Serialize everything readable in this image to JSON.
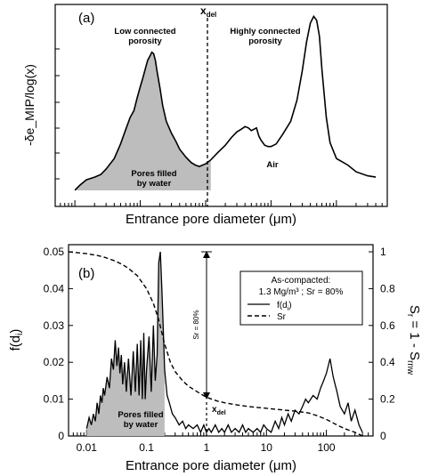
{
  "panel_a": {
    "label": "(a)",
    "ylabel": "-δe_MIP/log(x)",
    "xlabel": "Entrance pore diameter (μm)",
    "xdel_label": "x",
    "xdel_sub": "del",
    "ann_low_line1": "Low connected",
    "ann_low_line2": "porosity",
    "ann_high_line1": "Highly connected",
    "ann_high_line2": "porosity",
    "ann_pores_line1": "Pores filled",
    "ann_pores_line2": "by water",
    "ann_air": "Air"
  },
  "panel_b": {
    "label": "(b)",
    "ylabel_left": "f(d",
    "ylabel_left_sub": "i",
    "ylabel_left_end": ")",
    "ylabel_right": "S",
    "ylabel_right_sub1": "r",
    "ylabel_right_mid": " = 1 - S",
    "ylabel_right_sub2": "rnw",
    "xlabel": "Entrance pore diameter (μm)",
    "sr_annotation": "Sr = 80%",
    "xdel_label": "x",
    "xdel_sub": "del",
    "ann_pores_line1": "Pores filled",
    "ann_pores_line2": "by water",
    "legend_title1": "As-compacted:",
    "legend_title2": "1.3 Mg/m³ ; Sr = 80%",
    "legend_fd": "f(d",
    "legend_fd_sub": "i",
    "legend_fd_end": ")",
    "legend_sr": "Sr"
  },
  "chart_data": [
    {
      "type": "area",
      "panel": "(a)",
      "xlabel": "Entrance pore diameter (μm)",
      "ylabel": "-δe_MIP/log(x)",
      "xscale": "log",
      "xlim": [
        0.005,
        600
      ],
      "xdel": 1.2,
      "series": [
        {
          "x": [
            0.01,
            0.012,
            0.015,
            0.02,
            0.025,
            0.03,
            0.04,
            0.05,
            0.06,
            0.07,
            0.08,
            0.09,
            0.1,
            0.11,
            0.12,
            0.13,
            0.14,
            0.15,
            0.16,
            0.17,
            0.18,
            0.2,
            0.22,
            0.25,
            0.3,
            0.35,
            0.4,
            0.5,
            0.6,
            0.7,
            0.8,
            1.0,
            1.2,
            1.5,
            2,
            2.5,
            3,
            3.5,
            4,
            4.5,
            5,
            6,
            6.5,
            7,
            8,
            9,
            10,
            12,
            15,
            20,
            25,
            30,
            35,
            40,
            45,
            50,
            55,
            60,
            70,
            80,
            100,
            150,
            200,
            300,
            400
          ],
          "y": [
            0.2,
            4,
            8,
            10,
            12,
            16,
            24,
            35,
            46,
            55,
            60,
            70,
            78,
            85,
            92,
            98,
            101,
            104,
            103,
            98,
            90,
            77,
            64,
            52,
            43,
            37,
            31,
            25,
            21,
            19,
            18,
            20,
            23,
            28,
            34,
            40,
            44,
            46,
            48,
            47,
            45,
            47,
            41,
            38,
            34,
            33,
            33,
            35,
            42,
            52,
            68,
            90,
            112,
            126,
            131,
            128,
            116,
            91,
            55,
            36,
            24,
            19,
            14,
            11,
            10
          ]
        }
      ],
      "shaded_region": {
        "x_max": 1.2,
        "label": "Pores filled by water"
      },
      "annotations": [
        "Low connected porosity",
        "Highly connected porosity",
        "Pores filled by water",
        "Air"
      ]
    },
    {
      "type": "line",
      "panel": "(b)",
      "xlabel": "Entrance pore diameter (μm)",
      "ylabel_left": "f(d_i)",
      "ylabel_right": "S_r = 1 - S_rnw",
      "xscale": "log",
      "xlim": [
        0.005,
        600
      ],
      "ylim_left": [
        0,
        0.05
      ],
      "ylim_right": [
        0,
        1
      ],
      "x_ticks": [
        "0.01",
        "0.1",
        "1",
        "10",
        "100"
      ],
      "y_ticks_left": [
        "0",
        "0.01",
        "0.02",
        "0.03",
        "0.04",
        "0.05"
      ],
      "y_ticks_right": [
        "0",
        "0.2",
        "0.4",
        "0.6",
        "0.8",
        "1"
      ],
      "legend": {
        "position": "top-right",
        "title": [
          "As-compacted:",
          "1.3 Mg/m³ ; Sr = 80%"
        ],
        "entries": [
          "f(d_i)",
          "Sr"
        ]
      },
      "series": [
        {
          "name": "f(d_i)",
          "axis": "left",
          "x": [
            0.01,
            0.011,
            0.012,
            0.013,
            0.014,
            0.015,
            0.016,
            0.017,
            0.018,
            0.019,
            0.02,
            0.022,
            0.024,
            0.026,
            0.028,
            0.03,
            0.032,
            0.034,
            0.036,
            0.038,
            0.04,
            0.043,
            0.046,
            0.05,
            0.055,
            0.06,
            0.065,
            0.07,
            0.075,
            0.08,
            0.085,
            0.09,
            0.095,
            0.1,
            0.11,
            0.12,
            0.13,
            0.14,
            0.15,
            0.16,
            0.17,
            0.18,
            0.19,
            0.2,
            0.22,
            0.24,
            0.27,
            0.3,
            0.35,
            0.4,
            0.45,
            0.5,
            0.6,
            0.7,
            0.8,
            0.9,
            1.0,
            1.1,
            1.2,
            1.4,
            1.6,
            1.8,
            2,
            2.3,
            2.6,
            3,
            3.5,
            4,
            4.5,
            5,
            6,
            7,
            8,
            9,
            10,
            12,
            14,
            16,
            18,
            20,
            23,
            26,
            30,
            35,
            40,
            45,
            50,
            60,
            70,
            80,
            90,
            100,
            115,
            130,
            150,
            170,
            200,
            230,
            260,
            300,
            350,
            400
          ],
          "y": [
            0.002,
            0.005,
            0.003,
            0.006,
            0.004,
            0.009,
            0.006,
            0.011,
            0.009,
            0.013,
            0.011,
            0.016,
            0.013,
            0.021,
            0.018,
            0.026,
            0.019,
            0.024,
            0.017,
            0.022,
            0.014,
            0.02,
            0.012,
            0.021,
            0.011,
            0.023,
            0.012,
            0.025,
            0.011,
            0.026,
            0.01,
            0.028,
            0.01,
            0.018,
            0.027,
            0.012,
            0.03,
            0.015,
            0.022,
            0.047,
            0.05,
            0.04,
            0.029,
            0.018,
            0.011,
            0.009,
            0.006,
            0.005,
            0.003,
            0.004,
            0.002,
            0.003,
            0.002,
            0.003,
            0.001,
            0.003,
            0.001,
            0.002,
            0.001,
            0.003,
            0.001,
            0.002,
            0.001,
            0.003,
            0.001,
            0.002,
            0.001,
            0.003,
            0.001,
            0.002,
            0.001,
            0.002,
            0.001,
            0.003,
            0.002,
            0.001,
            0.004,
            0.002,
            0.005,
            0.003,
            0.006,
            0.004,
            0.007,
            0.006,
            0.008,
            0.01,
            0.009,
            0.011,
            0.01,
            0.013,
            0.015,
            0.017,
            0.021,
            0.016,
            0.012,
            0.008,
            0.006,
            0.009,
            0.004,
            0.007,
            0.003,
            0.001
          ]
        },
        {
          "name": "Sr",
          "axis": "right",
          "x": [
            0.005,
            0.01,
            0.015,
            0.02,
            0.03,
            0.04,
            0.05,
            0.07,
            0.1,
            0.13,
            0.16,
            0.2,
            0.25,
            0.3,
            0.4,
            0.5,
            0.7,
            1.0,
            1.5,
            2,
            3,
            5,
            7,
            10,
            20,
            30,
            50,
            70,
            100,
            150,
            200,
            300,
            400
          ],
          "y": [
            1.0,
            0.99,
            0.98,
            0.97,
            0.95,
            0.93,
            0.91,
            0.87,
            0.8,
            0.72,
            0.63,
            0.5,
            0.4,
            0.35,
            0.3,
            0.27,
            0.24,
            0.21,
            0.19,
            0.18,
            0.17,
            0.16,
            0.155,
            0.15,
            0.14,
            0.135,
            0.125,
            0.11,
            0.09,
            0.06,
            0.04,
            0.02,
            0.0
          ]
        }
      ],
      "shaded_region": {
        "x_max": 0.2,
        "label": "Pores filled by water"
      },
      "annotations": [
        "Sr = 80%",
        "x_del",
        "Pores filled by water"
      ]
    }
  ]
}
